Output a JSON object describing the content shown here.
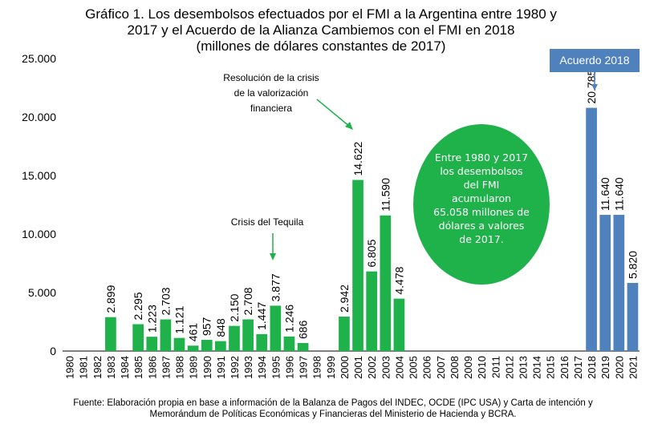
{
  "title_lines": [
    "Gráfico 1. Los desembolsos efectuados por el FMI a la Argentina entre 1980 y",
    "2017 y el Acuerdo de la Alianza Cambiemos con el FMI en 2018",
    "(millones de dólares constantes de 2017)"
  ],
  "source_lines": [
    "Fuente: Elaboración propia en base a información de la Balanza de Pagos del INDEC, OCDE (IPC USA) y  Carta de intención y",
    "Memorándum de Políticas Económicas y Financieras del Ministerio de Hacienda y BCRA."
  ],
  "annotations": {
    "crisis_1": "Resolución de la crisis",
    "crisis_2": "de la valorización",
    "crisis_3": "financiera",
    "tequila": "Crisis del Tequila",
    "acuerdo": "Acuerdo 2018",
    "bubble_lines": [
      "Entre 1980 y 2017",
      "los desembolsos",
      "del FMI",
      "acumularon",
      "65.058 millones de",
      "dólares a valores",
      "de 2017."
    ]
  },
  "colors": {
    "green": "#1fb14a",
    "blue": "#4f81bd",
    "axis": "#000000"
  },
  "chart_data": {
    "type": "bar",
    "title": "Gráfico 1. Los desembolsos efectuados por el FMI a la Argentina entre 1980 y 2017 y el Acuerdo de la Alianza Cambiemos con el FMI en 2018 (millones de dólares constantes de 2017)",
    "xlabel": "",
    "ylabel": "",
    "ylim": [
      0,
      25000
    ],
    "yticks": [
      "0",
      "5.000",
      "10.000",
      "15.000",
      "20.000",
      "25.000"
    ],
    "ytick_values": [
      0,
      5000,
      10000,
      15000,
      20000,
      25000
    ],
    "categories": [
      "1980",
      "1981",
      "1982",
      "1983",
      "1984",
      "1985",
      "1986",
      "1987",
      "1988",
      "1989",
      "1990",
      "1991",
      "1992",
      "1993",
      "1994",
      "1995",
      "1996",
      "1997",
      "1998",
      "1999",
      "2000",
      "2001",
      "2002",
      "2003",
      "2004",
      "2005",
      "2006",
      "2007",
      "2008",
      "2009",
      "2010",
      "2011",
      "2012",
      "2013",
      "2014",
      "2015",
      "2016",
      "2017",
      "2018",
      "2019",
      "2020",
      "2021"
    ],
    "values": [
      0,
      0,
      0,
      2899,
      0,
      2295,
      1223,
      2703,
      1121,
      461,
      957,
      848,
      2150,
      2708,
      1447,
      3877,
      1246,
      686,
      0,
      0,
      2942,
      14622,
      6805,
      11590,
      4478,
      0,
      0,
      0,
      0,
      0,
      0,
      0,
      0,
      0,
      0,
      0,
      0,
      0,
      20785,
      11640,
      11640,
      5820
    ],
    "labels": [
      "",
      "",
      "",
      "2.899",
      "",
      "2.295",
      "1.223",
      "2.703",
      "1.121",
      "461",
      "957",
      "848",
      "2.150",
      "2.708",
      "1.447",
      "3.877",
      "1.246",
      "686",
      "",
      "",
      "2.942",
      "14.622",
      "6.805",
      "11.590",
      "4.478",
      "",
      "",
      "",
      "",
      "",
      "",
      "",
      "",
      "",
      "",
      "",
      "",
      "",
      "20.785",
      "11.640",
      "11.640",
      "5.820"
    ],
    "series_colors": [
      "green",
      "green",
      "green",
      "green",
      "green",
      "green",
      "green",
      "green",
      "green",
      "green",
      "green",
      "green",
      "green",
      "green",
      "green",
      "green",
      "green",
      "green",
      "green",
      "green",
      "green",
      "green",
      "green",
      "green",
      "green",
      "green",
      "green",
      "green",
      "green",
      "green",
      "green",
      "green",
      "green",
      "green",
      "green",
      "green",
      "green",
      "green",
      "blue",
      "blue",
      "blue",
      "blue"
    ]
  }
}
